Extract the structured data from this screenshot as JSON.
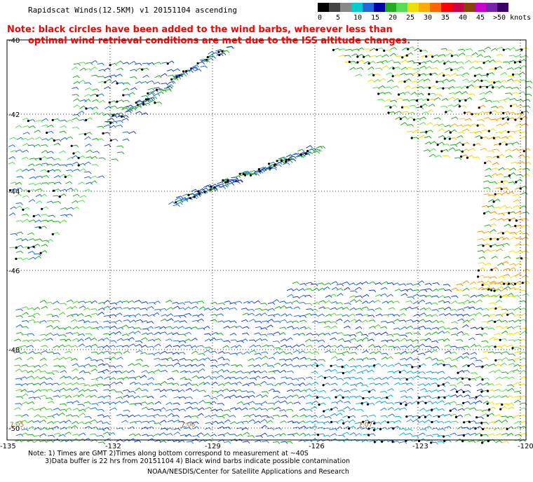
{
  "header": {
    "title": "Rapidscat Winds(12.5KM) v1 20151104 ascending"
  },
  "note": {
    "line1": "Note: black circles have been added to the wind barbs, wherever less than",
    "line2": "optimal wind retrieval conditions are met due to the ISS altitude changes."
  },
  "colorbar": {
    "labels": [
      "0",
      "5",
      "10",
      "15",
      "20",
      "25",
      "30",
      "35",
      "40",
      "45",
      ">50 knots"
    ],
    "colors": [
      "#000000",
      "#444444",
      "#888888",
      "#00cccc",
      "#2266dd",
      "#0000aa",
      "#22aa22",
      "#55dd55",
      "#eedd00",
      "#ffaa00",
      "#ff6600",
      "#ff0000",
      "#cc0044",
      "#884400",
      "#cc00cc",
      "#7722aa",
      "#3a006a"
    ]
  },
  "map": {
    "y_labels": [
      "-40",
      "-42",
      "-44",
      "-46",
      "-48",
      "-50"
    ],
    "x_labels": [
      "-135",
      "-132",
      "-129",
      "-126",
      "-123",
      "-120"
    ],
    "time_labels": [
      "7:05",
      "7:06",
      "7:07"
    ]
  },
  "footer": {
    "line1": "Note: 1) Times are GMT 2)Times along bottom correspond to measurement at ~40S",
    "line2": "3)Data buffer is 22 hrs from 20151104 4) Black wind barbs indicate possible contamination",
    "line3": "NOAA/NESDIS/Center for Satellite Applications and Research"
  }
}
